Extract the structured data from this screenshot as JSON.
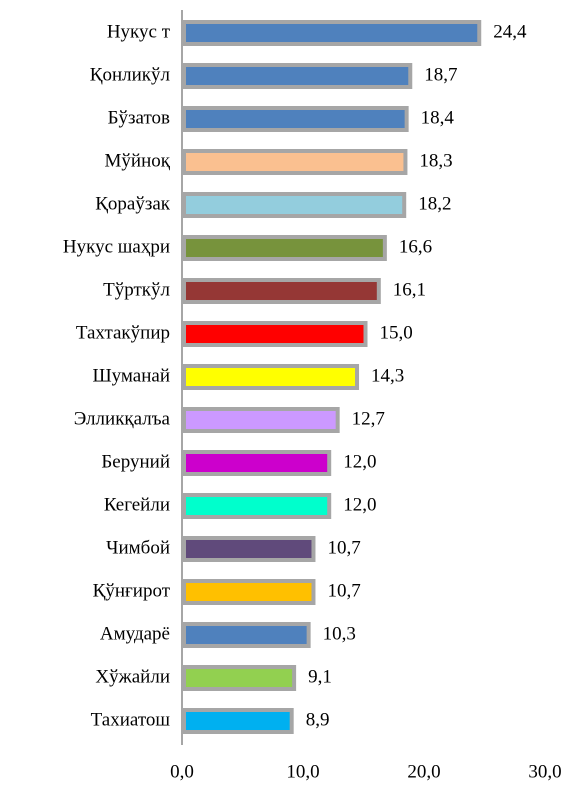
{
  "chart_data": {
    "type": "barh",
    "categories": [
      "Нукус т",
      "Қонликўл",
      "Бўзатов",
      "Мўйноқ",
      "Қораўзак",
      "Нукус шаҳри",
      "Тўрткўл",
      "Тахтакўпир",
      "Шуманай",
      "Элликқалъа",
      "Беруний",
      "Кегейли",
      "Чимбой",
      "Қўнғирот",
      "Амударё",
      "Хўжайли",
      "Тахиатош"
    ],
    "values": [
      24.4,
      18.7,
      18.4,
      18.3,
      18.2,
      16.6,
      16.1,
      15.0,
      14.3,
      12.7,
      12.0,
      12.0,
      10.7,
      10.7,
      10.3,
      9.1,
      8.9
    ],
    "value_labels": [
      "24,4",
      "18,7",
      "18,4",
      "18,3",
      "18,2",
      "16,6",
      "16,1",
      "15,0",
      "14,3",
      "12,7",
      "12,0",
      "12,0",
      "10,7",
      "10,7",
      "10,3",
      "9,1",
      "8,9"
    ],
    "colors": [
      "#4f81bd",
      "#4f81bd",
      "#4f81bd",
      "#fac090",
      "#93cddd",
      "#77933c",
      "#953735",
      "#ff0000",
      "#ffff00",
      "#cc99ff",
      "#cc00cc",
      "#00ffcc",
      "#604a7b",
      "#ffc000",
      "#4f81bd",
      "#92d050",
      "#00b0f0"
    ],
    "xlim": [
      0,
      30
    ],
    "xticks": [
      {
        "value": 0,
        "label": "0,0"
      },
      {
        "value": 10,
        "label": "10,0"
      },
      {
        "value": 20,
        "label": "20,0"
      },
      {
        "value": 30,
        "label": "30,0"
      }
    ],
    "grid": false
  }
}
